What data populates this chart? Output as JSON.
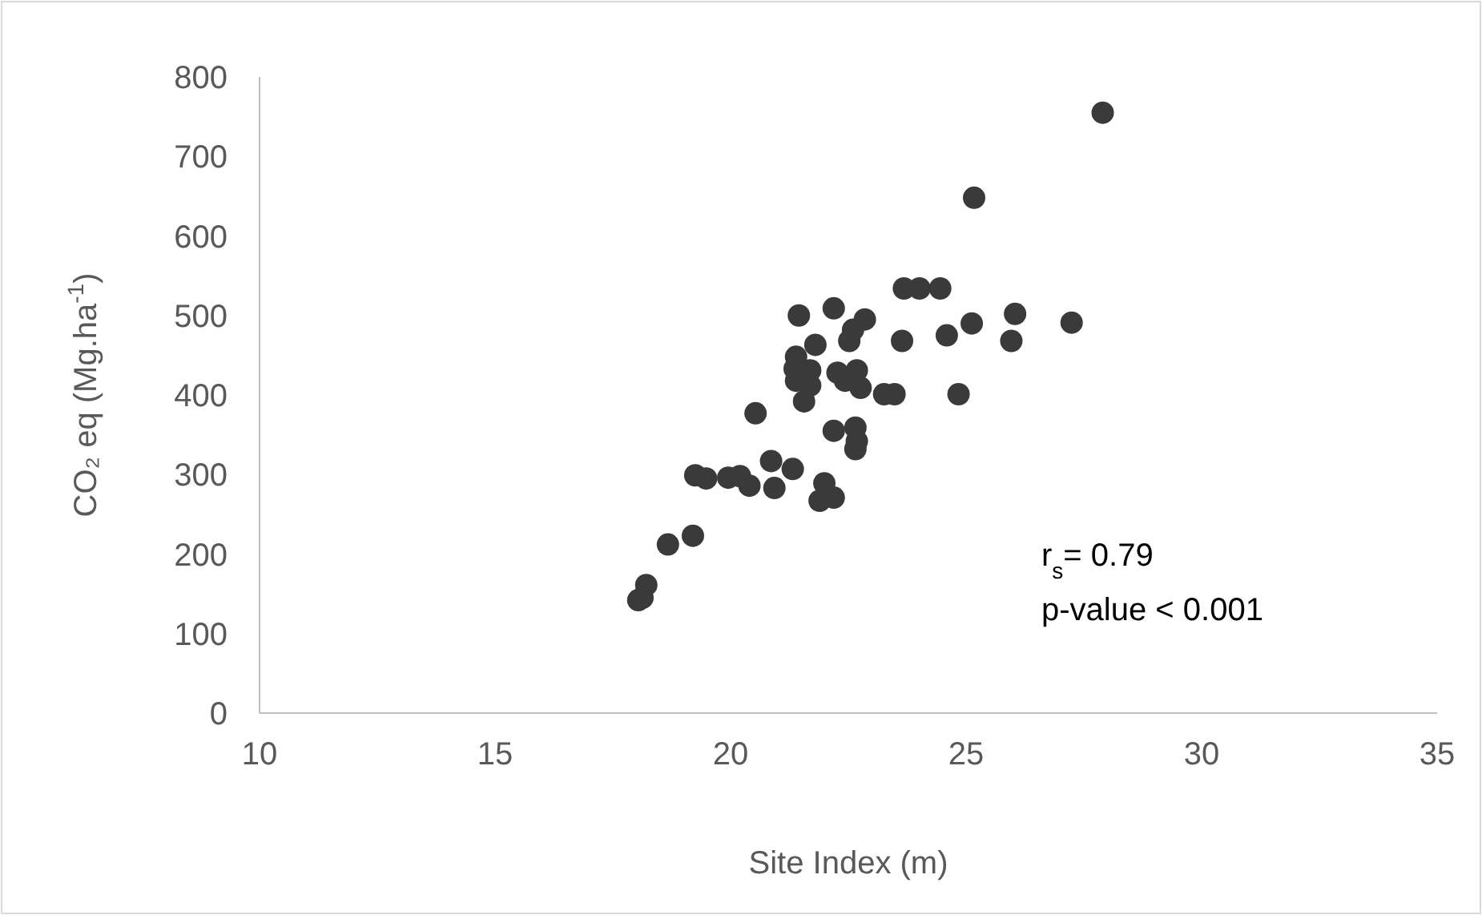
{
  "chart_data": {
    "type": "scatter",
    "xlabel": "Site Index (m)",
    "ylabel": "CO₂ eq (Mg.ha$^{-1}$)",
    "xlim": [
      10,
      35
    ],
    "xticks": [
      10,
      15,
      20,
      25,
      30,
      35
    ],
    "ylim": [
      0,
      800
    ],
    "yticks": [
      0,
      100,
      200,
      300,
      400,
      500,
      600,
      700,
      800
    ],
    "grid": false,
    "marker": "circle",
    "annotations": [
      "r$_{s}$= 0.79",
      "p-value < 0.001"
    ],
    "series": [
      {
        "color": "#3a3a3a",
        "x": [
          27.9,
          25.17,
          23.68,
          24.01,
          24.45,
          21.45,
          22.19,
          22.85,
          22.6,
          22.52,
          21.8,
          23.64,
          24.59,
          25.12,
          26.04,
          25.96,
          27.24,
          21.39,
          21.36,
          21.69,
          21.39,
          21.69,
          21.56,
          22.27,
          22.43,
          22.68,
          22.76,
          23.26,
          23.48,
          24.84,
          20.53,
          22.19,
          22.65,
          22.65,
          22.68,
          20.86,
          21.32,
          19.25,
          19.48,
          19.95,
          20.2,
          20.4,
          20.93,
          21.99,
          21.89,
          22.19,
          18.67,
          19.2,
          18.21,
          18.04,
          18.13
        ],
        "values": [
          755,
          648,
          534,
          534,
          534,
          500,
          509,
          495,
          482,
          468,
          463,
          468,
          475,
          490,
          502,
          468,
          491,
          448,
          433,
          431,
          418,
          412,
          392,
          428,
          418,
          431,
          409,
          401,
          401,
          401,
          377,
          355,
          359,
          332,
          342,
          317,
          307,
          299,
          295,
          296,
          298,
          286,
          283,
          289,
          267,
          271,
          212,
          223,
          161,
          142,
          145
        ]
      }
    ]
  }
}
